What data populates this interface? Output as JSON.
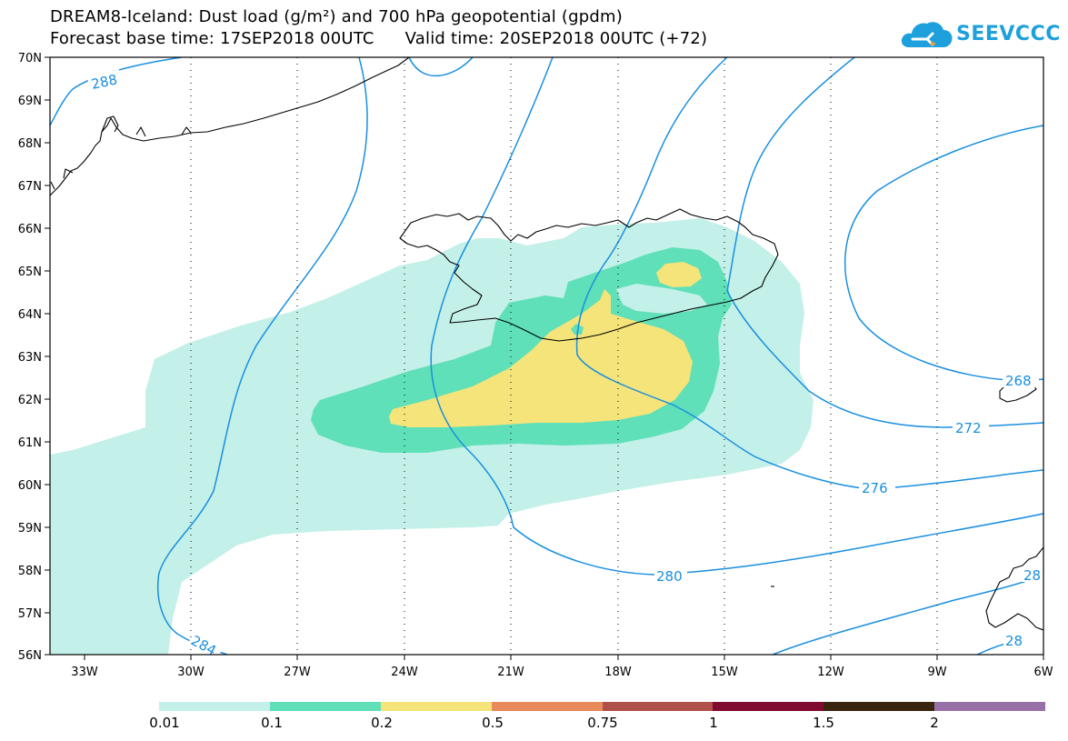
{
  "title": {
    "line1": "DREAM8-Iceland: Dust load (g/m²) and 700 hPa geopotential (gpdm)",
    "base_time_label": "Forecast base time: 17SEP2018 00UTC",
    "valid_time_label": "Valid time: 20SEP2018 00UTC (+72)"
  },
  "logo": {
    "text": "SEEVCCC",
    "icon": "cloud-icon",
    "color": "#1ea0dc"
  },
  "map": {
    "lat_labels": [
      "70N",
      "69N",
      "68N",
      "67N",
      "66N",
      "65N",
      "64N",
      "63N",
      "62N",
      "61N",
      "60N",
      "59N",
      "58N",
      "57N",
      "56N"
    ],
    "lon_labels": [
      "33W",
      "30W",
      "27W",
      "24W",
      "21W",
      "18W",
      "15W",
      "12W",
      "9W",
      "6W"
    ],
    "contour_labels": [
      "288",
      "284",
      "280",
      "276",
      "272",
      "268",
      "28",
      "28"
    ],
    "contour_color": "#1a8fe0",
    "coastline_color": "#000000",
    "grid": "dotted"
  },
  "legend": {
    "colors": [
      "#c3f0e8",
      "#5fe0b8",
      "#f4e47a",
      "#e88a5c",
      "#b0504a",
      "#800b30",
      "#3a2410",
      "#9870a8"
    ],
    "labels": [
      "0.01",
      "0.1",
      "0.2",
      "0.5",
      "0.75",
      "1",
      "1.5",
      "2"
    ]
  }
}
